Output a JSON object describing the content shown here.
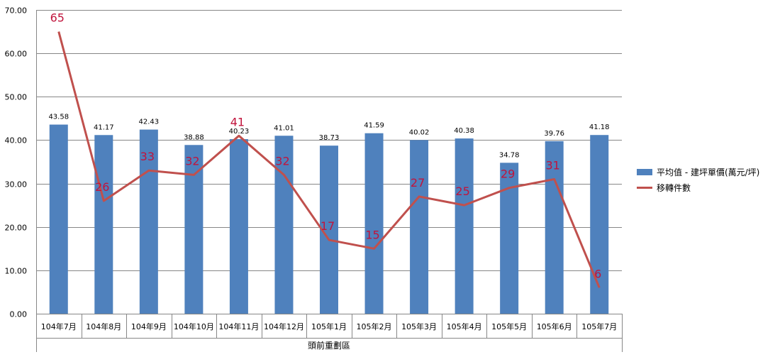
{
  "chart_data": {
    "type": "bar",
    "categories": [
      "104年7月",
      "104年8月",
      "104年9月",
      "104年10月",
      "104年11月",
      "104年12月",
      "105年1月",
      "105年2月",
      "105年3月",
      "105年4月",
      "105年5月",
      "105年6月",
      "105年7月"
    ],
    "group_label": "頭前重劃區",
    "ylim": [
      0,
      70
    ],
    "yticks": [
      "0.00",
      "10.00",
      "20.00",
      "30.00",
      "40.00",
      "50.00",
      "60.00",
      "70.00"
    ],
    "grid": true,
    "legend_position": "right",
    "series": [
      {
        "name": "平均值 - 建坪單價(萬元/坪)",
        "type": "bar",
        "color": "#4f81bd",
        "values": [
          43.58,
          41.17,
          42.43,
          38.88,
          40.23,
          41.01,
          38.73,
          41.59,
          40.02,
          40.38,
          34.78,
          39.76,
          41.18
        ],
        "labels": [
          "43.58",
          "41.17",
          "42.43",
          "38.88",
          "40.23",
          "41.01",
          "38.73",
          "41.59",
          "40.02",
          "40.38",
          "34.78",
          "39.76",
          "41.18"
        ]
      },
      {
        "name": "移轉件數",
        "type": "line",
        "color": "#c0504d",
        "label_color": "#c0143c",
        "values": [
          65,
          26,
          33,
          32,
          41,
          32,
          17,
          15,
          27,
          25,
          29,
          31,
          6
        ],
        "labels": [
          "65",
          "26",
          "33",
          "32",
          "41",
          "32",
          "17",
          "15",
          "27",
          "25",
          "29",
          "31",
          "6"
        ]
      }
    ]
  }
}
